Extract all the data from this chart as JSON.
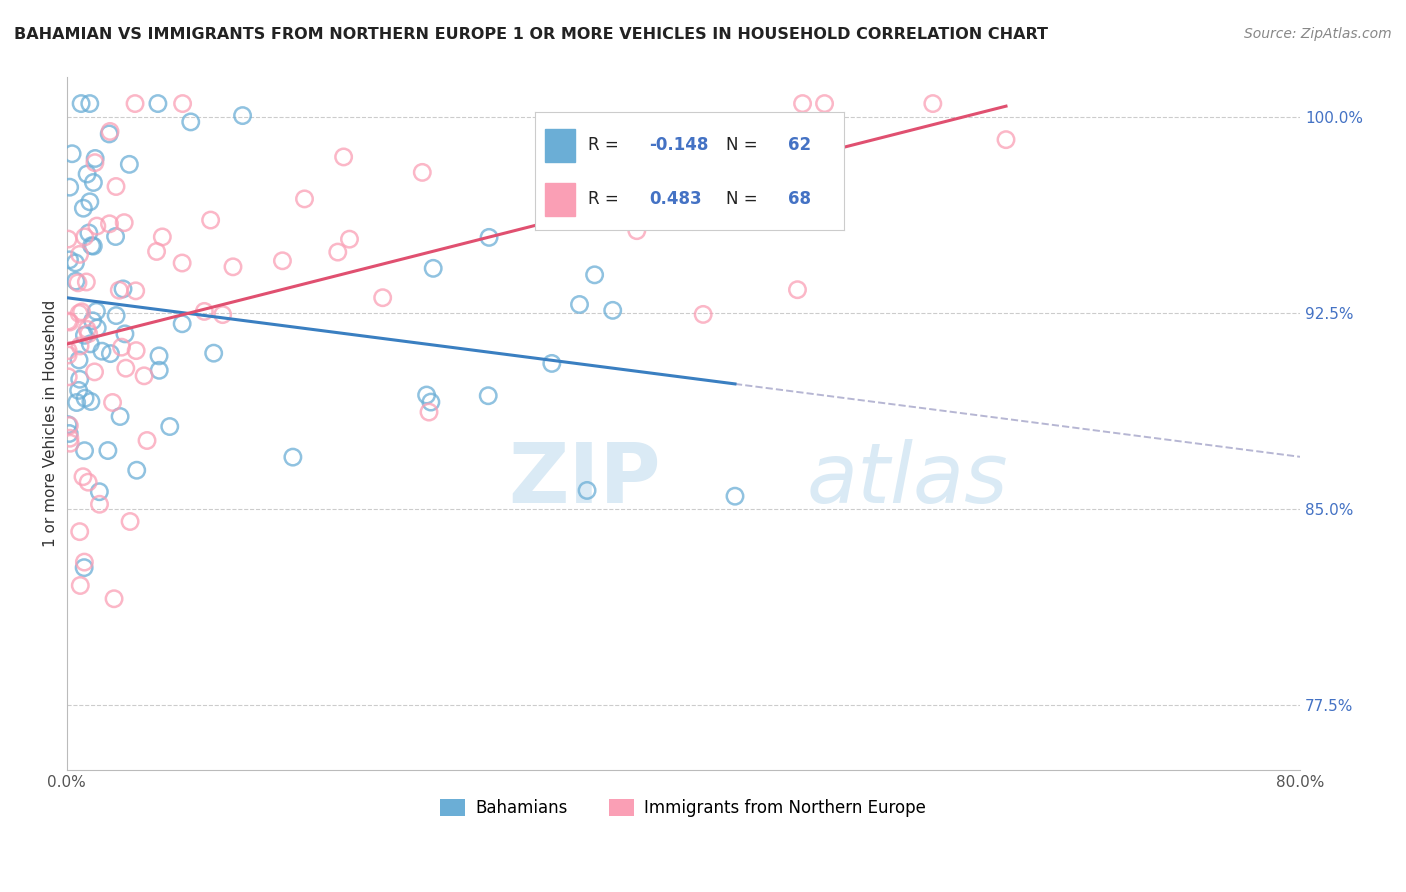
{
  "title": "BAHAMIAN VS IMMIGRANTS FROM NORTHERN EUROPE 1 OR MORE VEHICLES IN HOUSEHOLD CORRELATION CHART",
  "source": "Source: ZipAtlas.com",
  "ylabel": "1 or more Vehicles in Household",
  "xlim": [
    0.0,
    80.0
  ],
  "ylim": [
    75.0,
    101.5
  ],
  "yticks": [
    77.5,
    85.0,
    92.5,
    100.0
  ],
  "ytick_labels": [
    "77.5%",
    "85.0%",
    "92.5%",
    "100.0%"
  ],
  "xtick_labels": [
    "0.0%",
    "",
    "",
    "",
    "80.0%"
  ],
  "legend_label1": "Bahamians",
  "legend_label2": "Immigrants from Northern Europe",
  "R1": -0.148,
  "N1": 62,
  "R2": 0.483,
  "N2": 68,
  "color_blue": "#6baed6",
  "color_pink": "#fa9fb5",
  "trend_color_blue": "#3a7fc1",
  "trend_color_pink": "#e05070",
  "dash_color": "#aaaacc",
  "grid_color": "#cccccc",
  "background_color": "#ffffff",
  "watermark_color": "#daeaf5"
}
